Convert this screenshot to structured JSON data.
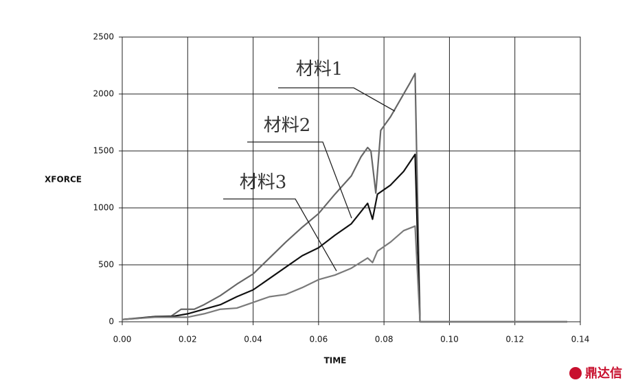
{
  "chart_data": {
    "type": "line",
    "xlabel": "TIME",
    "ylabel": "XFORCE",
    "xlim": [
      0,
      0.14
    ],
    "ylim": [
      0,
      2500
    ],
    "xticks": [
      {
        "value": 0,
        "label": "0.00"
      },
      {
        "value": 0.02,
        "label": "0.02"
      },
      {
        "value": 0.04,
        "label": "0.04"
      },
      {
        "value": 0.06,
        "label": "0.06"
      },
      {
        "value": 0.08,
        "label": "0.08"
      },
      {
        "value": 0.1,
        "label": "0.10"
      },
      {
        "value": 0.12,
        "label": "0.12"
      },
      {
        "value": 0.14,
        "label": "0.14"
      }
    ],
    "yticks": [
      0,
      500,
      1000,
      1500,
      2000,
      2500
    ],
    "grid": true,
    "series": [
      {
        "name": "材料1",
        "color": "#666666",
        "x": [
          0,
          0.005,
          0.01,
          0.015,
          0.018,
          0.022,
          0.025,
          0.03,
          0.035,
          0.04,
          0.045,
          0.05,
          0.055,
          0.06,
          0.065,
          0.07,
          0.073,
          0.075,
          0.076,
          0.0775,
          0.079,
          0.082,
          0.085,
          0.088,
          0.0895,
          0.091,
          0.092,
          0.136
        ],
        "values": [
          20,
          30,
          45,
          50,
          110,
          110,
          150,
          230,
          330,
          420,
          560,
          700,
          830,
          950,
          1120,
          1280,
          1450,
          1530,
          1500,
          1130,
          1680,
          1800,
          1950,
          2100,
          2180,
          0,
          0,
          0
        ]
      },
      {
        "name": "材料2",
        "color": "#111111",
        "x": [
          0,
          0.01,
          0.015,
          0.02,
          0.025,
          0.03,
          0.035,
          0.04,
          0.045,
          0.05,
          0.055,
          0.06,
          0.065,
          0.07,
          0.075,
          0.0765,
          0.078,
          0.082,
          0.086,
          0.0895,
          0.091,
          0.136
        ],
        "values": [
          20,
          45,
          45,
          70,
          110,
          150,
          220,
          280,
          380,
          480,
          580,
          650,
          760,
          860,
          1040,
          900,
          1120,
          1200,
          1320,
          1470,
          0,
          0
        ]
      },
      {
        "name": "材料3",
        "color": "#7a7a7a",
        "x": [
          0,
          0.01,
          0.015,
          0.02,
          0.025,
          0.03,
          0.035,
          0.04,
          0.045,
          0.05,
          0.055,
          0.06,
          0.065,
          0.07,
          0.075,
          0.0765,
          0.078,
          0.082,
          0.086,
          0.0895,
          0.091,
          0.136
        ],
        "values": [
          20,
          40,
          40,
          40,
          70,
          110,
          120,
          170,
          220,
          240,
          300,
          370,
          410,
          470,
          560,
          520,
          620,
          700,
          800,
          840,
          0,
          0
        ]
      }
    ],
    "watermark": "鼎达信"
  }
}
